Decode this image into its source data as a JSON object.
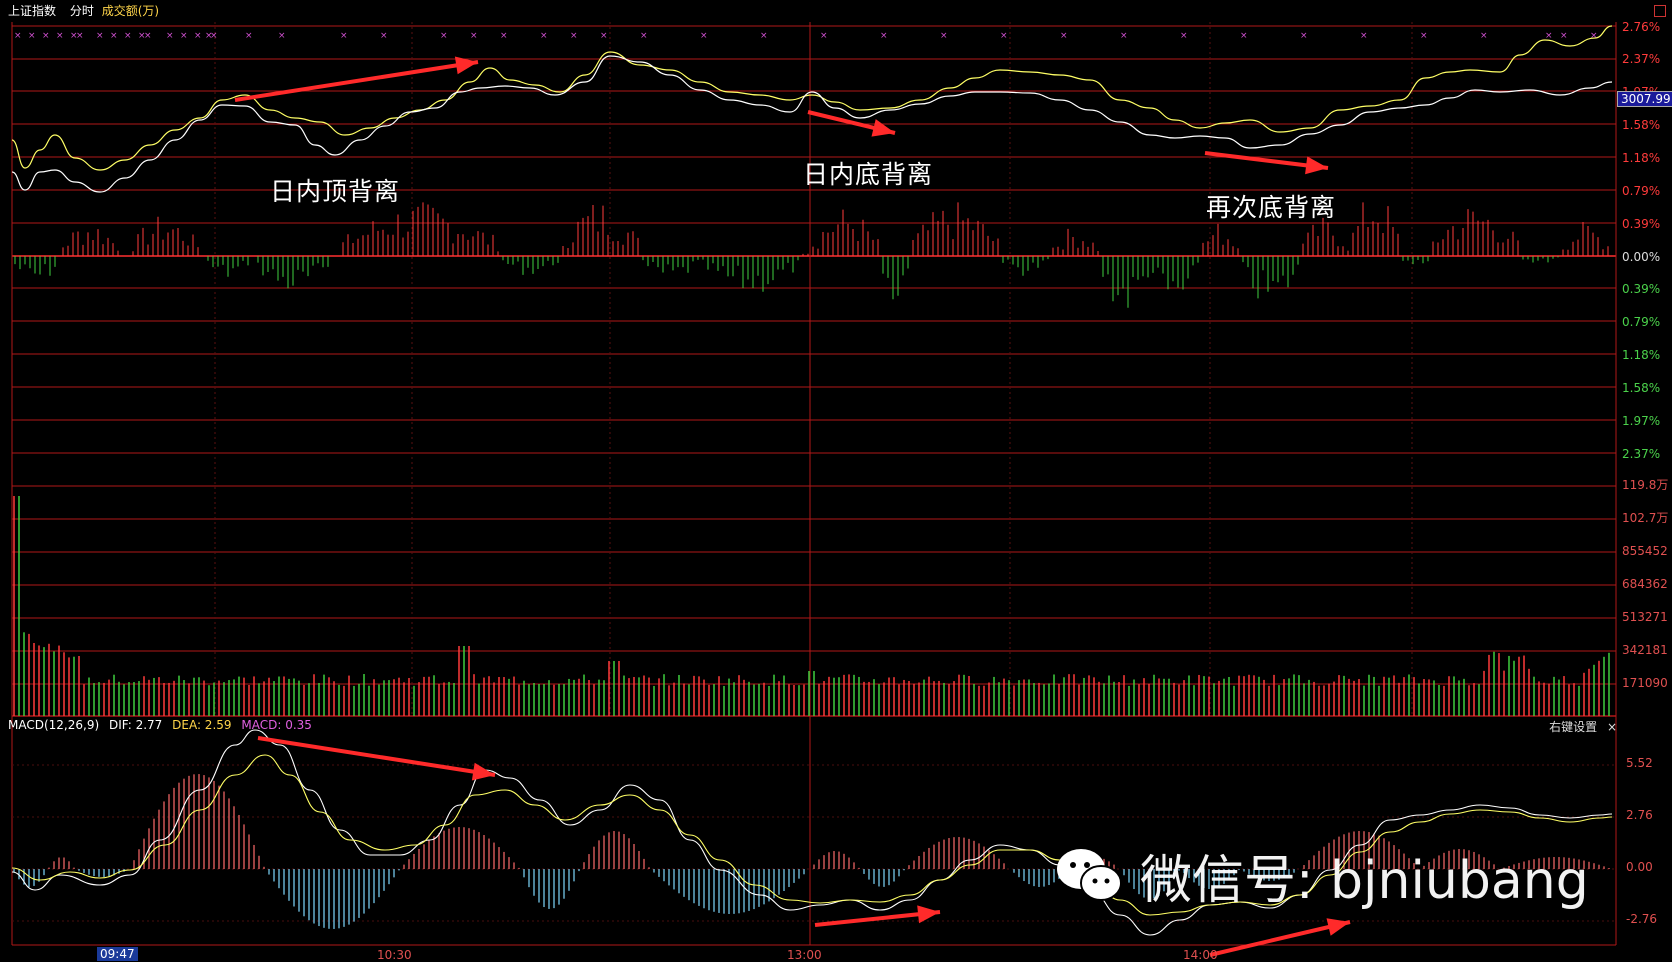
{
  "header": {
    "index_name": "上证指数",
    "mode": "分时",
    "volume_label": "成交额(万)"
  },
  "current_price": "3007.99",
  "price_axis_labels": [
    "2.76%",
    "2.37%",
    "1.97%",
    "1.58%",
    "1.18%",
    "0.79%",
    "0.39%",
    "0.00%",
    "0.39%",
    "0.79%",
    "1.18%",
    "1.58%",
    "1.97%",
    "2.37%"
  ],
  "volume_axis_labels": [
    "119.8万",
    "102.7万",
    "855452",
    "684362",
    "513271",
    "342181",
    "171090"
  ],
  "annotations": {
    "top_divergence": "日内顶背离",
    "bottom_divergence": "日内底背离",
    "second_bottom_divergence": "再次底背离"
  },
  "macd": {
    "title": "MACD(12,26,9)",
    "dif": "DIF: 2.77",
    "dea": "DEA: 2.59",
    "macd": "MACD: 0.35",
    "right_setting": "右键设置",
    "close": "×",
    "axis_labels": [
      "5.52",
      "2.76",
      "0.00",
      "-2.76"
    ]
  },
  "time_axis": {
    "selected": "09:47",
    "labels": [
      "10:30",
      "13:00",
      "14:00"
    ]
  },
  "watermark": "微信号: bjniubang",
  "colors": {
    "grid": "#b01818",
    "up": "#ff3b3b",
    "down": "#3fcf3f",
    "price_line": "#ffffff",
    "avg_line": "#ffff66",
    "macd_pos": "#ff6a6a",
    "macd_neg": "#7fd8ff",
    "arrow": "#ff2a2a"
  }
}
